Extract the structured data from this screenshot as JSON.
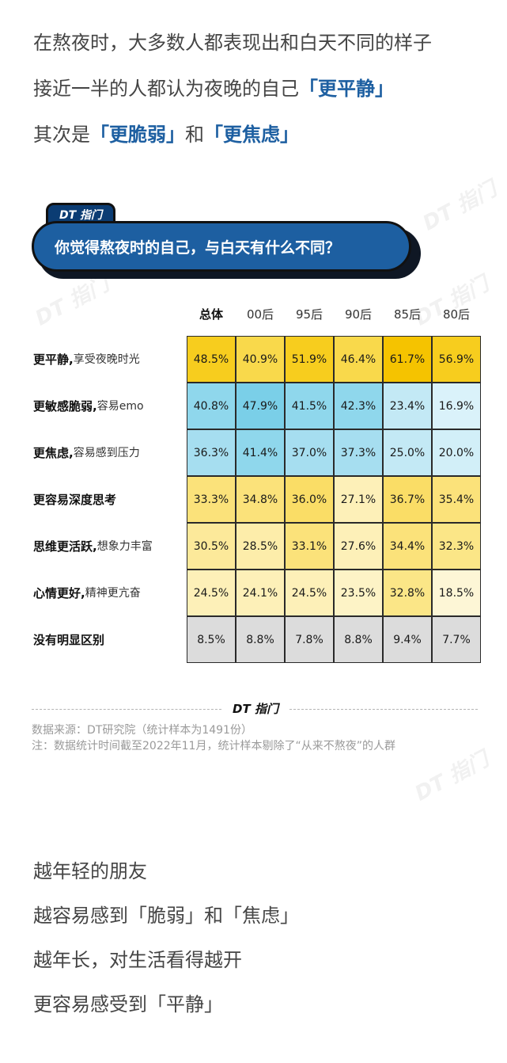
{
  "intro": {
    "line1": "在熬夜时，大多数人都表现出和白天不同的样子",
    "line2_pre": "接近一半的人都认为夜晚的自己",
    "line2_hl": "「更平静」",
    "line3_pre": "其次是",
    "line3_hl1": "「更脆弱」",
    "line3_mid": "和",
    "line3_hl2": "「更焦虑」"
  },
  "brand": "DT 指门",
  "watermark": "DT 指门",
  "question": "你觉得熬夜时的自己，与白天有什么不同？",
  "chart_data": {
    "type": "heatmap",
    "title": "你觉得熬夜时的自己，与白天有什么不同？",
    "columns": [
      "总体",
      "00后",
      "95后",
      "90后",
      "85后",
      "80后"
    ],
    "rows": [
      {
        "main": "更平静,",
        "sub": " 享受夜晚时光",
        "values": [
          "48.5%",
          "40.9%",
          "51.9%",
          "46.4%",
          "61.7%",
          "56.9%"
        ],
        "colors": [
          "#f7cd1e",
          "#f9d94b",
          "#f7cd1e",
          "#f9d94b",
          "#f5c300",
          "#f7cd1e"
        ]
      },
      {
        "main": "更敏感脆弱,",
        "sub": " 容易emo",
        "values": [
          "40.8%",
          "47.9%",
          "41.5%",
          "42.3%",
          "23.4%",
          "16.9%"
        ],
        "colors": [
          "#8fd7ec",
          "#7acfe8",
          "#8fd7ec",
          "#8fd7ec",
          "#c3e9f5",
          "#daf2fa"
        ]
      },
      {
        "main": "更焦虑,",
        "sub": " 容易感到压力",
        "values": [
          "36.3%",
          "41.4%",
          "37.0%",
          "37.3%",
          "25.0%",
          "20.0%"
        ],
        "colors": [
          "#a6def0",
          "#8fd7ec",
          "#a6def0",
          "#a6def0",
          "#c3e9f5",
          "#d2eff8"
        ]
      },
      {
        "main": "更容易深度思考",
        "sub": "",
        "values": [
          "33.3%",
          "34.8%",
          "36.0%",
          "27.1%",
          "36.7%",
          "35.4%"
        ],
        "colors": [
          "#fbe27a",
          "#fbe27a",
          "#fadd66",
          "#fdf0b8",
          "#fadd66",
          "#fbe27a"
        ]
      },
      {
        "main": "思维更活跃,",
        "sub": " 想象力丰富",
        "values": [
          "30.5%",
          "28.5%",
          "33.1%",
          "27.6%",
          "34.4%",
          "32.3%"
        ],
        "colors": [
          "#fce99a",
          "#fdedaa",
          "#fbe27a",
          "#fdf0b8",
          "#fbe27a",
          "#fbe687"
        ]
      },
      {
        "main": "心情更好,",
        "sub": " 精神更亢奋",
        "values": [
          "24.5%",
          "24.1%",
          "24.5%",
          "23.5%",
          "32.8%",
          "18.5%"
        ],
        "colors": [
          "#fdf0b8",
          "#fdf0b8",
          "#fdf0b8",
          "#fdf3c6",
          "#fbe687",
          "#fdf6d6"
        ]
      },
      {
        "main": "没有明显区别",
        "sub": "",
        "values": [
          "8.5%",
          "8.8%",
          "7.8%",
          "8.8%",
          "9.4%",
          "7.7%"
        ],
        "colors": [
          "#dcdcdc",
          "#dcdcdc",
          "#dcdcdc",
          "#dcdcdc",
          "#dcdcdc",
          "#dcdcdc"
        ]
      }
    ]
  },
  "footer": {
    "logo": "DT 指门",
    "source": "数据来源：DT研究院（统计样本为1491份）",
    "note": "注：数据统计时间截至2022年11月，统计样本剔除了“从来不熬夜”的人群"
  },
  "outro": {
    "line1": "越年轻的朋友",
    "line2": "越容易感到「脆弱」和「焦虑」",
    "line3": "越年长，对生活看得越开",
    "line4": "更容易感受到「平静」"
  }
}
